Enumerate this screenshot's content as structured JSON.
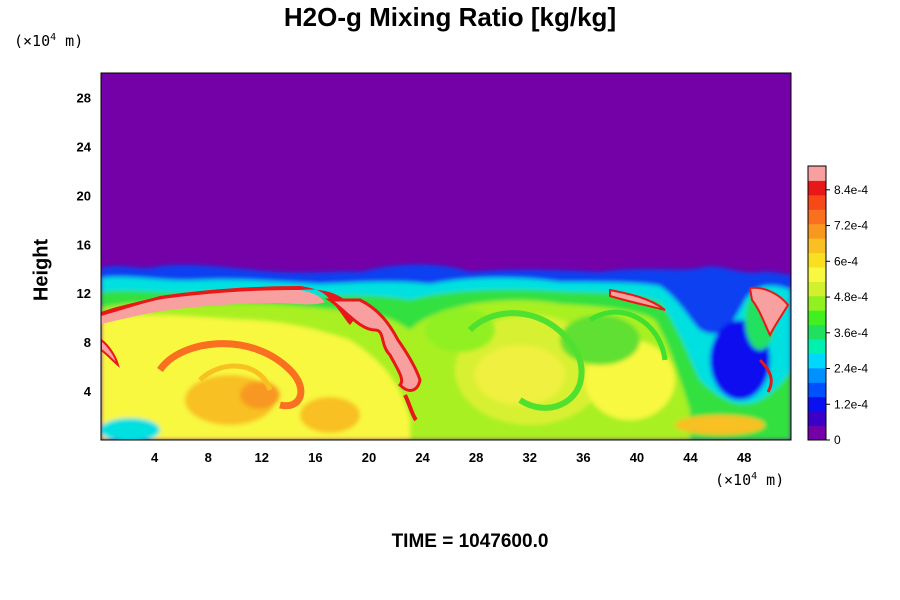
{
  "chart_data": {
    "type": "heatmap",
    "title": "H2O-g Mixing Ratio [kg/kg]",
    "ylabel": "Height",
    "xlabel": "",
    "x_unit": {
      "prefix": "(×10",
      "exp": "4",
      "suffix": " m)"
    },
    "y_unit": {
      "prefix": "(×10",
      "exp": "4",
      "suffix": " m)"
    },
    "footer": "TIME = 1047600.0",
    "xlim": [
      0,
      51.5
    ],
    "ylim": [
      0,
      30
    ],
    "x_ticks": [
      "4",
      "8",
      "12",
      "16",
      "20",
      "24",
      "28",
      "32",
      "36",
      "40",
      "44",
      "48"
    ],
    "y_ticks": [
      "4",
      "8",
      "12",
      "16",
      "20",
      "24",
      "28"
    ],
    "colorbar": {
      "range": [
        0,
        0.00092
      ],
      "labels": [
        "0",
        "1.2e-4",
        "2.4e-4",
        "3.6e-4",
        "4.8e-4",
        "6e-4",
        "7.2e-4",
        "8.4e-4"
      ],
      "label_values": [
        0,
        0.00012,
        0.00024,
        0.00036,
        0.00048,
        0.0006,
        0.00072,
        0.00084
      ],
      "colors": [
        "#7400a8",
        "#3a00c8",
        "#0a10f0",
        "#0050ff",
        "#0090ff",
        "#00d8ff",
        "#00f0b0",
        "#20e060",
        "#40f020",
        "#90f020",
        "#d0f030",
        "#f8f840",
        "#f8e020",
        "#f8c020",
        "#f89820",
        "#f87020",
        "#f84818",
        "#e81818",
        "#f8a0a0"
      ]
    },
    "field_description": "dry air (~0) above ~13 km; moist layer 6-8.4e-4 kg/kg below with eddies; saturated (>8.4e-4) filaments near 12 km (x 2-16) and descending near x 17-24"
  }
}
